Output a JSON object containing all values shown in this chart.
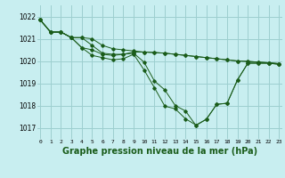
{
  "background_color": "#c8eef0",
  "grid_color": "#9dcfcf",
  "line_color": "#1a5c1a",
  "marker_color": "#1a5c1a",
  "xlabel": "Graphe pression niveau de la mer (hPa)",
  "xlabel_fontsize": 7.0,
  "ylabel_ticks": [
    1017,
    1018,
    1019,
    1020,
    1021,
    1022
  ],
  "xticks": [
    0,
    1,
    2,
    3,
    4,
    5,
    6,
    7,
    8,
    9,
    10,
    11,
    12,
    13,
    14,
    15,
    16,
    17,
    18,
    19,
    20,
    21,
    22,
    23
  ],
  "xlim": [
    -0.3,
    23.3
  ],
  "ylim": [
    1016.5,
    1022.5
  ],
  "s1_x": [
    0,
    1,
    2,
    3,
    4,
    5,
    6,
    7,
    8,
    9,
    10,
    11,
    12,
    13,
    14,
    15,
    16,
    17,
    18,
    19,
    20,
    21,
    22,
    23
  ],
  "s1_y": [
    1021.85,
    1021.3,
    1021.3,
    1021.05,
    1021.05,
    1021.0,
    1020.7,
    1020.55,
    1020.5,
    1020.45,
    1020.4,
    1020.38,
    1020.35,
    1020.3,
    1020.25,
    1020.2,
    1020.15,
    1020.1,
    1020.05,
    1020.0,
    1019.98,
    1019.95,
    1019.92,
    1019.88
  ],
  "s2_x": [
    0,
    1,
    2,
    3,
    4,
    5,
    6,
    7,
    8,
    9,
    10,
    11,
    12,
    13,
    14,
    15,
    16,
    17,
    18,
    19,
    20,
    21,
    22,
    23
  ],
  "s2_y": [
    1021.85,
    1021.3,
    1021.3,
    1021.05,
    1021.05,
    1020.7,
    1020.35,
    1020.3,
    1020.3,
    1020.4,
    1020.4,
    1020.38,
    1020.35,
    1020.3,
    1020.25,
    1020.2,
    1020.15,
    1020.1,
    1020.05,
    1020.0,
    1019.98,
    1019.95,
    1019.92,
    1019.88
  ],
  "s3_x": [
    0,
    1,
    2,
    3,
    4,
    5,
    6,
    7,
    8,
    9,
    10,
    11,
    12,
    13,
    14,
    15,
    16,
    17,
    18,
    19,
    20,
    21,
    22,
    23
  ],
  "s3_y": [
    1021.85,
    1021.3,
    1021.3,
    1021.05,
    1020.6,
    1020.5,
    1020.3,
    1020.25,
    1020.3,
    1020.35,
    1019.95,
    1019.1,
    1018.7,
    1018.0,
    1017.75,
    1017.1,
    1017.38,
    1018.05,
    1018.1,
    1019.15,
    1019.9,
    1019.9,
    1019.9,
    1019.85
  ],
  "s4_x": [
    0,
    1,
    2,
    3,
    4,
    5,
    6,
    7,
    8,
    9,
    10,
    11,
    12,
    13,
    14,
    15,
    16,
    17,
    18,
    19,
    20,
    21,
    22,
    23
  ],
  "s4_y": [
    1021.85,
    1021.3,
    1021.3,
    1021.05,
    1020.6,
    1020.25,
    1020.15,
    1020.05,
    1020.1,
    1020.3,
    1019.6,
    1018.8,
    1017.97,
    1017.85,
    1017.4,
    1017.12,
    1017.38,
    1018.05,
    1018.1,
    1019.15,
    1019.9,
    1019.9,
    1019.9,
    1019.85
  ]
}
